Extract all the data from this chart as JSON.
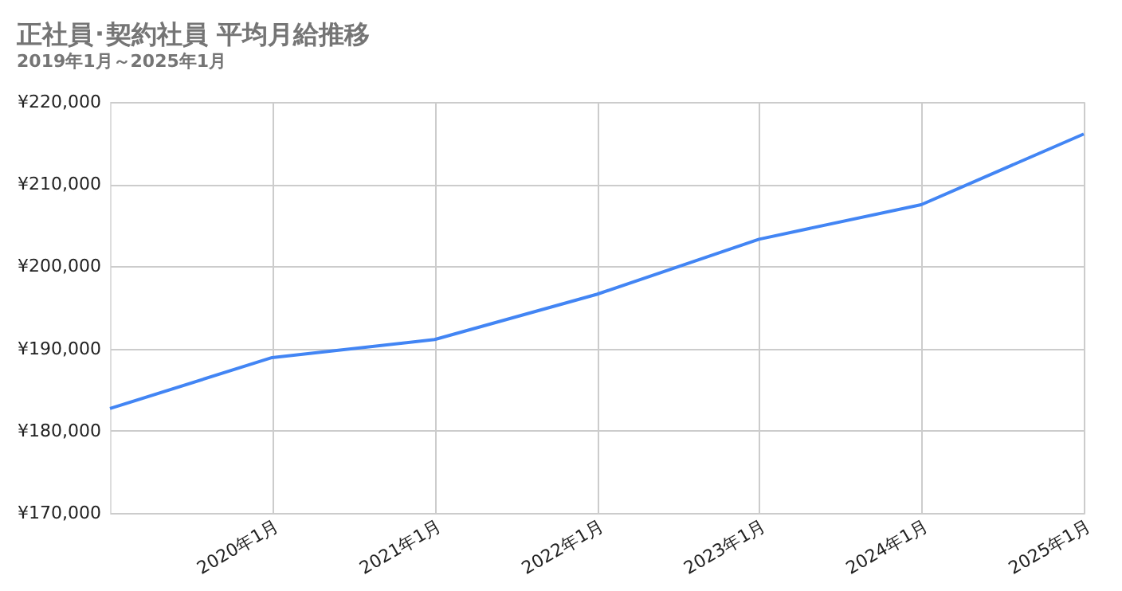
{
  "chart_data": {
    "type": "line",
    "title": "正社員･契約社員 平均月給推移",
    "subtitle": "2019年1月～2025年1月",
    "x": [
      "2019-01",
      "2020-01",
      "2021-01",
      "2022-01",
      "2023-01",
      "2024-01",
      "2025-01"
    ],
    "series": [
      {
        "color": "#4285f4",
        "values": [
          182700,
          188900,
          191100,
          196600,
          203300,
          207500,
          216100
        ]
      }
    ],
    "xlim": [
      "2019-01",
      "2025-01"
    ],
    "xticks": [
      {
        "value": "2020-01",
        "label": "2020年1月"
      },
      {
        "value": "2021-01",
        "label": "2021年1月"
      },
      {
        "value": "2022-01",
        "label": "2022年1月"
      },
      {
        "value": "2023-01",
        "label": "2023年1月"
      },
      {
        "value": "2024-01",
        "label": "2024年1月"
      },
      {
        "value": "2025-01",
        "label": "2025年1月"
      }
    ],
    "ylim": [
      170000,
      220000
    ],
    "yticks": [
      {
        "value": 170000,
        "label": "¥170,000"
      },
      {
        "value": 180000,
        "label": "¥180,000"
      },
      {
        "value": 190000,
        "label": "¥190,000"
      },
      {
        "value": 200000,
        "label": "¥200,000"
      },
      {
        "value": 210000,
        "label": "¥210,000"
      },
      {
        "value": 220000,
        "label": "¥220,000"
      }
    ],
    "grid": true,
    "marker": "none",
    "line_style": "solid"
  }
}
